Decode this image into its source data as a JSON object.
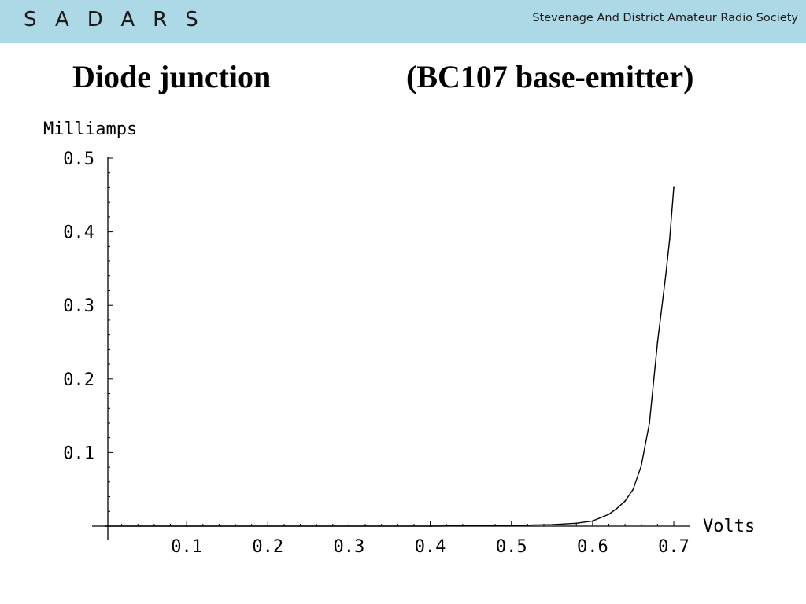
{
  "header": {
    "logo_text": "SADARS",
    "society_name": "Stevenage And District Amateur Radio Society",
    "background_color": "#add8e6"
  },
  "slide": {
    "title_left": "Diode junction",
    "title_right": "(BC107 base-emitter)"
  },
  "chart_data": {
    "type": "line",
    "xlabel": "Volts",
    "ylabel": "Milliamps",
    "xlim": [
      0,
      0.7
    ],
    "ylim": [
      0,
      0.5
    ],
    "x_ticks": [
      "0.1",
      "0.2",
      "0.3",
      "0.4",
      "0.5",
      "0.6",
      "0.7"
    ],
    "y_ticks": [
      "0.1",
      "0.2",
      "0.3",
      "0.4",
      "0.5"
    ],
    "grid": false,
    "series": [
      {
        "x": [
          0.0,
          0.1,
          0.2,
          0.3,
          0.4,
          0.5,
          0.55,
          0.58,
          0.6,
          0.62,
          0.63,
          0.64,
          0.65,
          0.66,
          0.67,
          0.68,
          0.69,
          0.695,
          0.7
        ],
        "y": [
          0.0,
          0.0,
          0.0,
          0.0,
          0.0,
          0.001,
          0.002,
          0.004,
          0.007,
          0.016,
          0.024,
          0.034,
          0.05,
          0.082,
          0.14,
          0.25,
          0.34,
          0.39,
          0.46
        ]
      }
    ],
    "line_color": "#000000"
  }
}
